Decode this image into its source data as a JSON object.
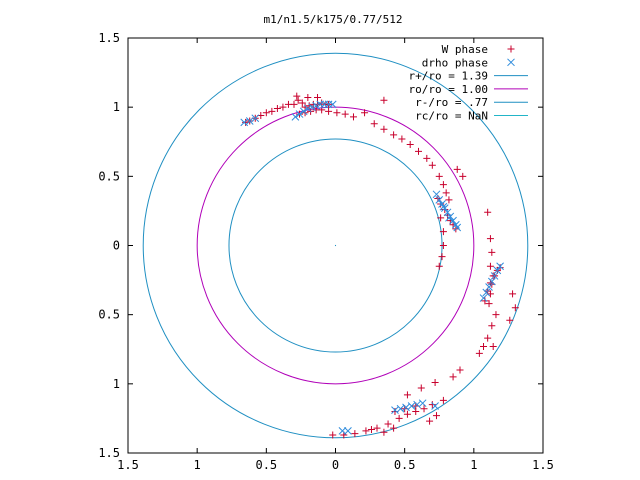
{
  "chart_data": {
    "type": "scatter",
    "title": "m1/n1.5/k175/0.77/512",
    "xlim": [
      -1.5,
      1.5
    ],
    "ylim": [
      -1.5,
      1.5
    ],
    "xticks": [
      {
        "value": -1.5,
        "label": "1.5"
      },
      {
        "value": -1.0,
        "label": "1"
      },
      {
        "value": -0.5,
        "label": "0.5"
      },
      {
        "value": 0.0,
        "label": "0"
      },
      {
        "value": 0.5,
        "label": "0.5"
      },
      {
        "value": 1.0,
        "label": "1"
      },
      {
        "value": 1.5,
        "label": "1.5"
      }
    ],
    "yticks": [
      {
        "value": 1.5,
        "label": "1.5"
      },
      {
        "value": 1.0,
        "label": "1"
      },
      {
        "value": 0.5,
        "label": "0.5"
      },
      {
        "value": 0.0,
        "label": "0"
      },
      {
        "value": -0.5,
        "label": "0.5"
      },
      {
        "value": -1.0,
        "label": "1"
      },
      {
        "value": -1.5,
        "label": "1.5"
      }
    ],
    "legend_position": "top-right",
    "grid": false,
    "circles": [
      {
        "name": "r+/ro = 1.39",
        "radius": 1.39,
        "color": "#1f8fc2"
      },
      {
        "name": "ro/ro = 1.00",
        "radius": 1.0,
        "color": "#b000b8"
      },
      {
        "name": "r-/ro = .77",
        "radius": 0.77,
        "color": "#1f8fc2"
      },
      {
        "name": "rc/ro = NaN",
        "radius": null,
        "color": "#22b5c8"
      }
    ],
    "series": [
      {
        "name": "W phase",
        "marker": "plus",
        "color": "#c8002c",
        "points": [
          [
            -0.65,
            0.89
          ],
          [
            -0.62,
            0.9
          ],
          [
            -0.58,
            0.92
          ],
          [
            -0.54,
            0.94
          ],
          [
            -0.5,
            0.96
          ],
          [
            -0.46,
            0.97
          ],
          [
            -0.42,
            0.99
          ],
          [
            -0.38,
            1.0
          ],
          [
            -0.34,
            1.02
          ],
          [
            -0.3,
            1.02
          ],
          [
            -0.27,
            1.05
          ],
          [
            -0.24,
            1.03
          ],
          [
            -0.22,
            1.0
          ],
          [
            -0.19,
            1.01
          ],
          [
            -0.16,
            1.02
          ],
          [
            -0.13,
            1.02
          ],
          [
            -0.1,
            1.03
          ],
          [
            -0.07,
            1.02
          ],
          [
            -0.05,
            1.02
          ],
          [
            -0.28,
            1.08
          ],
          [
            -0.2,
            1.07
          ],
          [
            -0.13,
            1.07
          ],
          [
            -0.26,
            0.95
          ],
          [
            -0.22,
            0.96
          ],
          [
            -0.18,
            0.97
          ],
          [
            -0.14,
            0.98
          ],
          [
            -0.1,
            0.98
          ],
          [
            -0.05,
            0.97
          ],
          [
            0.01,
            0.96
          ],
          [
            0.07,
            0.95
          ],
          [
            0.13,
            0.93
          ],
          [
            0.21,
            0.96
          ],
          [
            0.28,
            0.88
          ],
          [
            0.35,
            0.84
          ],
          [
            0.42,
            0.8
          ],
          [
            0.48,
            0.77
          ],
          [
            0.54,
            0.73
          ],
          [
            0.6,
            0.68
          ],
          [
            0.66,
            0.63
          ],
          [
            0.7,
            0.58
          ],
          [
            0.75,
            0.5
          ],
          [
            0.78,
            0.44
          ],
          [
            0.8,
            0.38
          ],
          [
            0.82,
            0.33
          ],
          [
            0.35,
            1.05
          ],
          [
            0.92,
            0.5
          ],
          [
            0.88,
            0.55
          ],
          [
            1.1,
            0.24
          ],
          [
            0.74,
            0.34
          ],
          [
            0.76,
            0.3
          ],
          [
            0.79,
            0.26
          ],
          [
            0.81,
            0.22
          ],
          [
            0.83,
            0.18
          ],
          [
            0.85,
            0.15
          ],
          [
            0.87,
            0.12
          ],
          [
            0.76,
            0.2
          ],
          [
            0.78,
            0.1
          ],
          [
            0.78,
            0.0
          ],
          [
            0.77,
            -0.08
          ],
          [
            0.75,
            -0.15
          ],
          [
            1.12,
            0.05
          ],
          [
            1.13,
            -0.05
          ],
          [
            1.12,
            -0.15
          ],
          [
            1.14,
            -0.22
          ],
          [
            1.13,
            -0.28
          ],
          [
            1.12,
            -0.35
          ],
          [
            1.11,
            -0.42
          ],
          [
            1.08,
            -0.4
          ],
          [
            1.1,
            -0.33
          ],
          [
            1.12,
            -0.27
          ],
          [
            1.15,
            -0.22
          ],
          [
            1.17,
            -0.18
          ],
          [
            1.19,
            -0.16
          ],
          [
            1.16,
            -0.5
          ],
          [
            1.13,
            -0.58
          ],
          [
            1.1,
            -0.67
          ],
          [
            1.07,
            -0.73
          ],
          [
            1.04,
            -0.78
          ],
          [
            1.28,
            -0.35
          ],
          [
            1.3,
            -0.45
          ],
          [
            1.26,
            -0.54
          ],
          [
            1.14,
            -0.73
          ],
          [
            0.9,
            -0.9
          ],
          [
            0.85,
            -0.95
          ],
          [
            0.72,
            -0.99
          ],
          [
            0.62,
            -1.03
          ],
          [
            0.52,
            -1.08
          ],
          [
            0.78,
            -1.12
          ],
          [
            0.7,
            -1.15
          ],
          [
            0.64,
            -1.18
          ],
          [
            0.58,
            -1.2
          ],
          [
            0.52,
            -1.22
          ],
          [
            0.46,
            -1.25
          ],
          [
            0.38,
            -1.29
          ],
          [
            0.3,
            -1.32
          ],
          [
            0.22,
            -1.34
          ],
          [
            0.14,
            -1.36
          ],
          [
            0.06,
            -1.37
          ],
          [
            -0.02,
            -1.37
          ],
          [
            0.42,
            -1.32
          ],
          [
            0.35,
            -1.35
          ],
          [
            0.26,
            -1.33
          ],
          [
            0.68,
            -1.27
          ],
          [
            0.73,
            -1.23
          ],
          [
            0.43,
            -1.2
          ],
          [
            0.5,
            -1.18
          ],
          [
            0.58,
            -1.16
          ]
        ]
      },
      {
        "name": "drho phase",
        "marker": "x",
        "color": "#2f8cdc",
        "points": [
          [
            -0.66,
            0.89
          ],
          [
            -0.62,
            0.9
          ],
          [
            -0.58,
            0.92
          ],
          [
            -0.29,
            0.93
          ],
          [
            -0.26,
            0.95
          ],
          [
            -0.23,
            0.97
          ],
          [
            -0.2,
            0.99
          ],
          [
            -0.17,
            1.0
          ],
          [
            -0.14,
            1.01
          ],
          [
            -0.11,
            1.02
          ],
          [
            -0.08,
            1.02
          ],
          [
            -0.05,
            1.02
          ],
          [
            -0.02,
            1.02
          ],
          [
            0.73,
            0.37
          ],
          [
            0.75,
            0.33
          ],
          [
            0.77,
            0.3
          ],
          [
            0.79,
            0.27
          ],
          [
            0.81,
            0.24
          ],
          [
            0.83,
            0.21
          ],
          [
            0.85,
            0.18
          ],
          [
            0.87,
            0.15
          ],
          [
            0.88,
            0.13
          ],
          [
            0.78,
            0.28
          ],
          [
            0.82,
            0.2
          ],
          [
            1.07,
            -0.38
          ],
          [
            1.09,
            -0.34
          ],
          [
            1.11,
            -0.3
          ],
          [
            1.13,
            -0.26
          ],
          [
            1.15,
            -0.22
          ],
          [
            1.17,
            -0.18
          ],
          [
            1.19,
            -0.15
          ],
          [
            0.43,
            -1.19
          ],
          [
            0.47,
            -1.18
          ],
          [
            0.51,
            -1.17
          ],
          [
            0.55,
            -1.16
          ],
          [
            0.59,
            -1.15
          ],
          [
            0.63,
            -1.14
          ],
          [
            0.05,
            -1.34
          ],
          [
            0.09,
            -1.34
          ],
          [
            0.72,
            -1.16
          ]
        ]
      }
    ]
  }
}
